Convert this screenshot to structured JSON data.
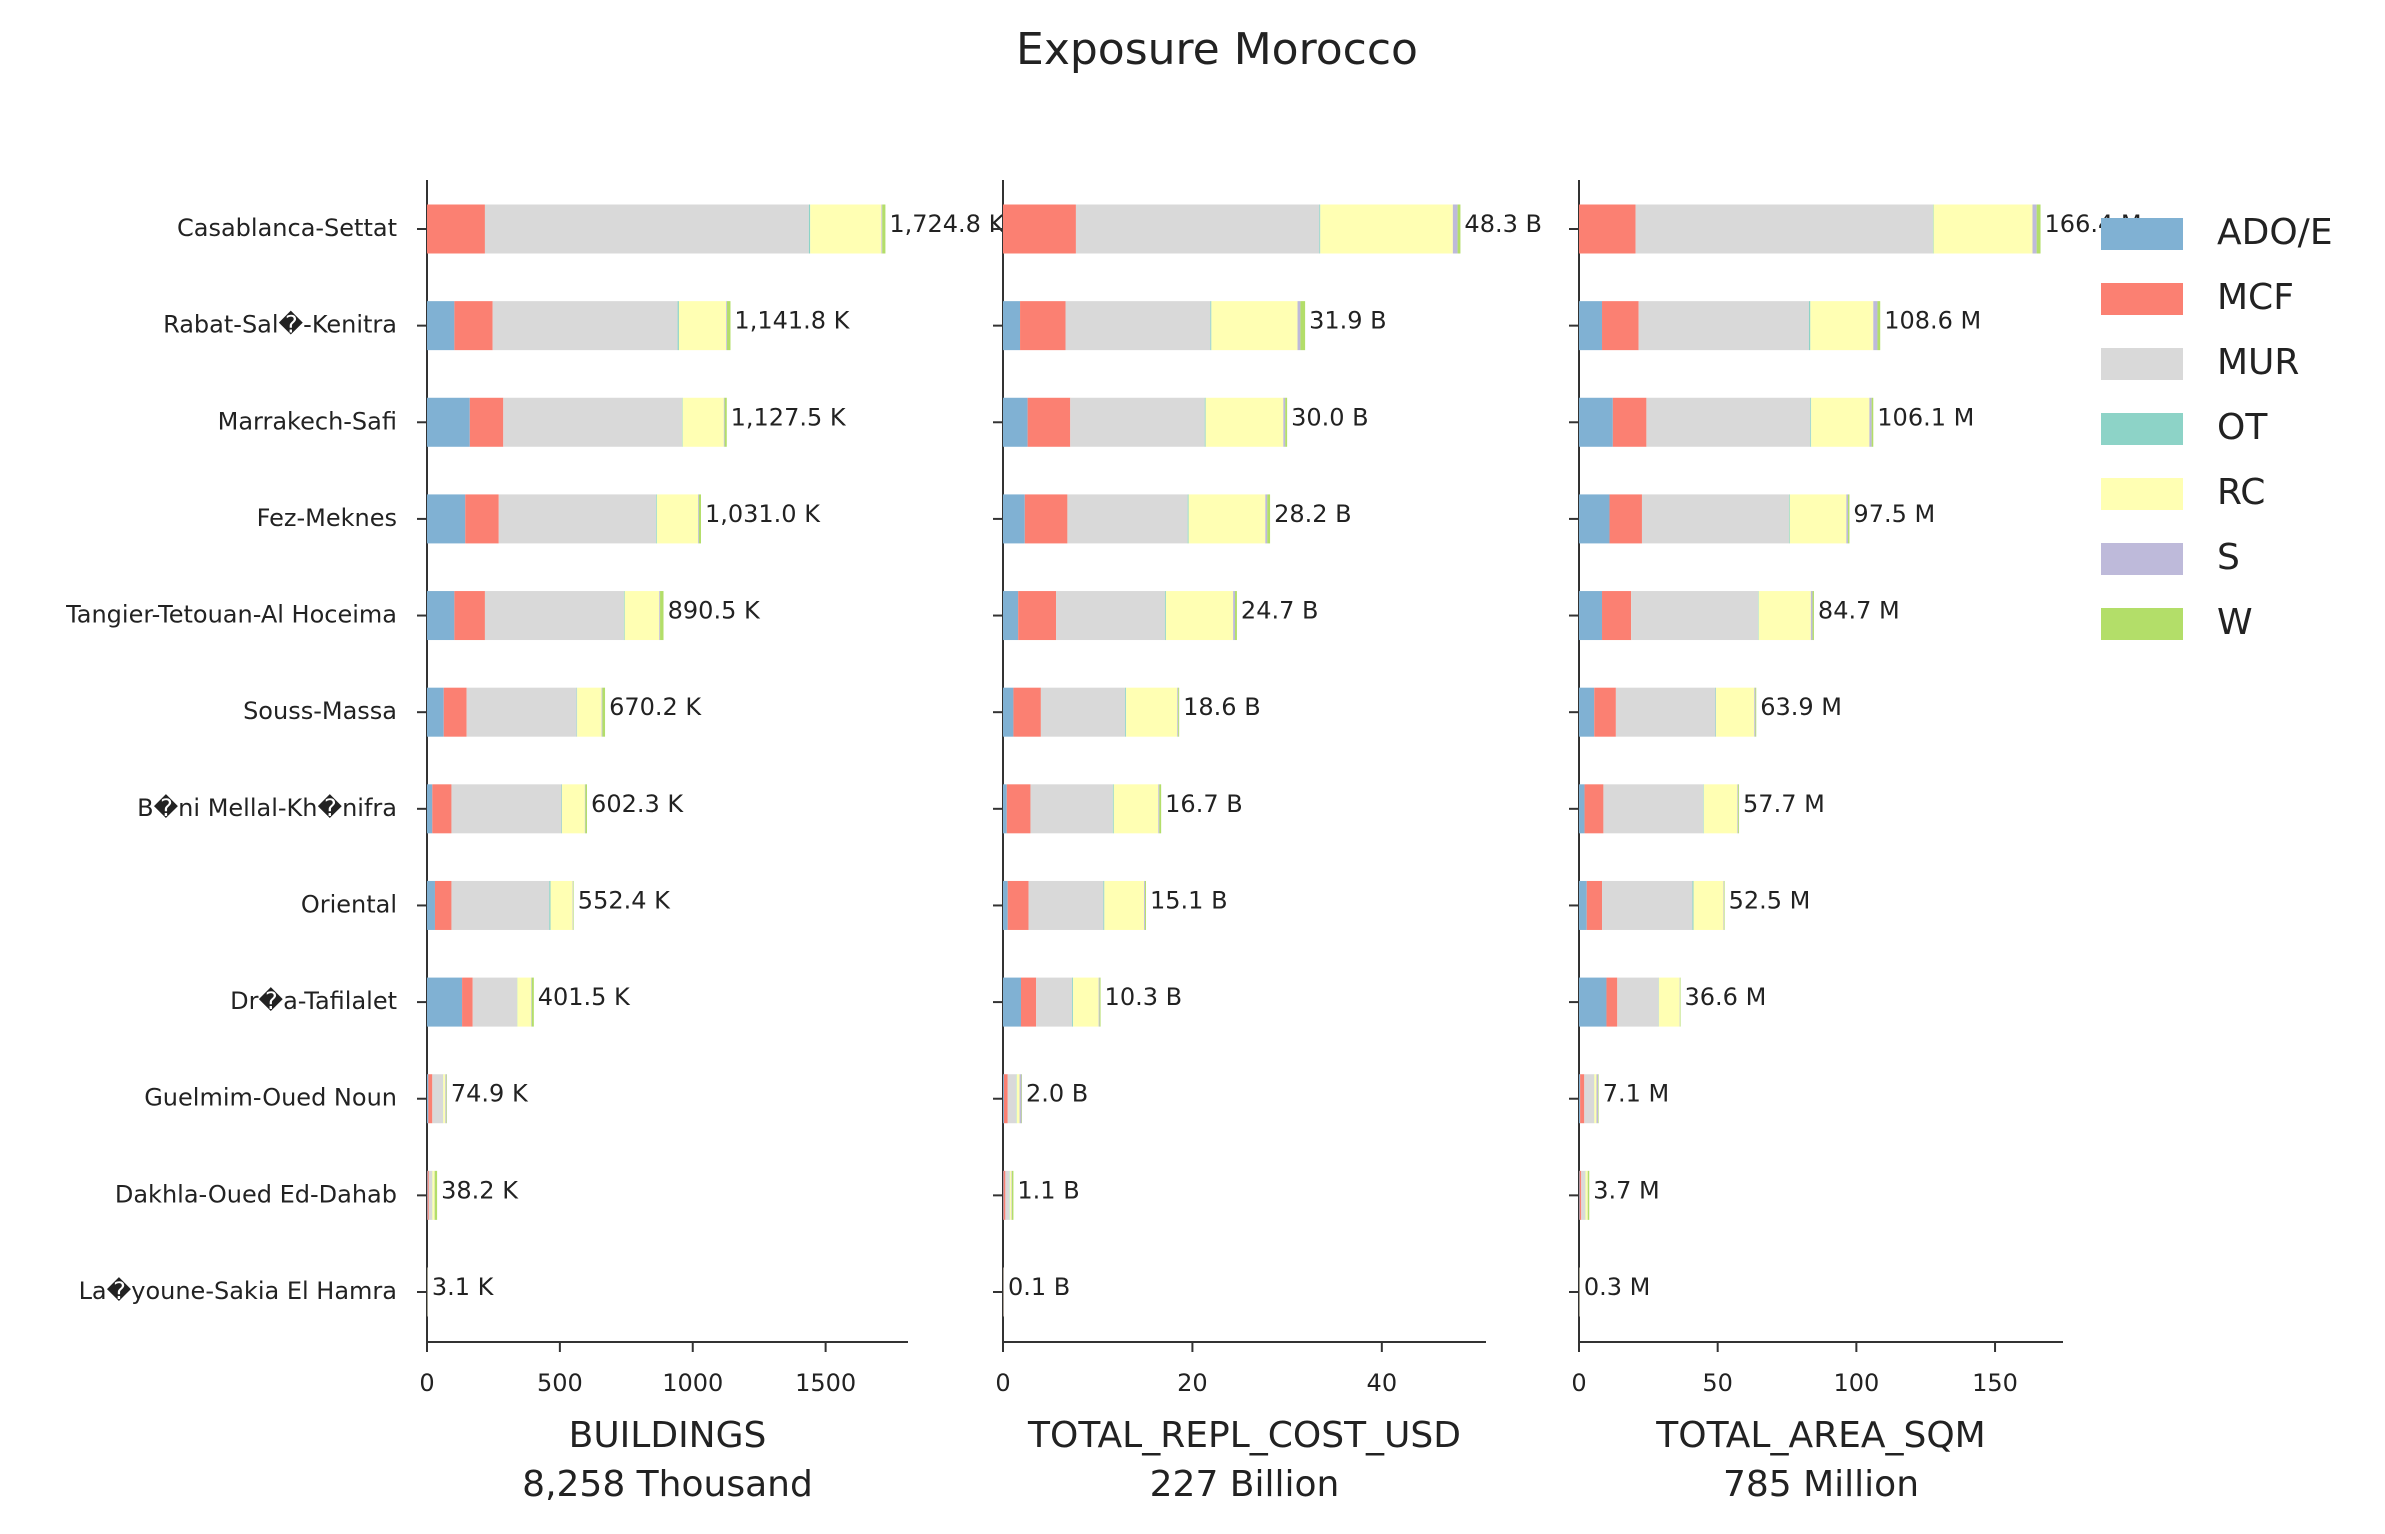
{
  "chart_data": {
    "type": "bar",
    "orientation": "horizontal",
    "stacked": true,
    "title": "Exposure Morocco",
    "categories": [
      "Casablanca-Settat",
      "Rabat-Sal�-Kenitra",
      "Marrakech-Safi",
      "Fez-Meknes",
      "Tangier-Tetouan-Al Hoceima",
      "Souss-Massa",
      "B�ni Mellal-Kh�nifra",
      "Oriental",
      "Dr�a-Tafilalet",
      "Guelmim-Oued Noun",
      "Dakhla-Oued Ed-Dahab",
      "La�youne-Sakia El Hamra"
    ],
    "series": [
      {
        "name": "ADO/E",
        "color": "#80b1d3"
      },
      {
        "name": "MCF",
        "color": "#fb8072"
      },
      {
        "name": "MUR",
        "color": "#d9d9d9"
      },
      {
        "name": "OT",
        "color": "#8dd3c7"
      },
      {
        "name": "RC",
        "color": "#ffffb3"
      },
      {
        "name": "S",
        "color": "#bebada"
      },
      {
        "name": "W",
        "color": "#b3de69"
      }
    ],
    "panels": [
      {
        "xlabel": [
          "BUILDINGS",
          "8,258 Thousand"
        ],
        "xlim": [
          0,
          1810
        ],
        "xticks": [
          0,
          500,
          1000,
          1500
        ],
        "series_values": [
          [
            0,
            103,
            161,
            144,
            103,
            63,
            20,
            30,
            132,
            5,
            2,
            0.2
          ],
          [
            218,
            144,
            126,
            126,
            115,
            86,
            72,
            62,
            40,
            15,
            5,
            0.5
          ],
          [
            1219,
            696,
            673,
            592,
            523,
            414,
            414,
            368,
            167,
            40,
            12,
            1.5
          ],
          [
            5,
            5,
            2,
            3,
            3,
            2,
            2,
            5,
            1,
            1,
            1,
            0.1
          ],
          [
            268,
            178,
            155,
            155,
            130,
            92,
            86,
            83,
            52,
            8,
            8,
            0.5
          ],
          [
            3,
            3,
            3,
            3,
            3,
            3,
            2,
            2,
            2,
            4,
            1,
            0.1
          ],
          [
            12,
            13,
            8,
            8,
            13,
            10,
            6,
            2,
            8,
            2,
            9,
            0.2
          ]
        ],
        "totals": [
          1724.8,
          1141.8,
          1127.5,
          1031.0,
          890.5,
          670.2,
          602.3,
          552.4,
          401.5,
          74.9,
          38.2,
          3.1
        ],
        "total_labels": [
          "1,724.8 K",
          "1,141.8 K",
          "1,127.5 K",
          "1,031.0 K",
          "890.5 K",
          "670.2 K",
          "602.3 K",
          "552.4 K",
          "401.5 K",
          "74.9 K",
          "38.2 K",
          "3.1 K"
        ]
      },
      {
        "xlabel": [
          "TOTAL_REPL_COST_USD",
          "227 Billion"
        ],
        "xlim": [
          0,
          51
        ],
        "xticks": [
          0,
          20,
          40
        ],
        "series_values": [
          [
            0,
            1.8,
            2.6,
            2.3,
            1.6,
            1.1,
            0.4,
            0.5,
            1.9,
            0.1,
            0.05,
            0.01
          ],
          [
            7.7,
            4.8,
            4.5,
            4.5,
            4.0,
            2.9,
            2.5,
            2.2,
            1.6,
            0.4,
            0.2,
            0.02
          ],
          [
            25.7,
            15.3,
            14.2,
            12.7,
            11.5,
            8.9,
            8.7,
            7.9,
            3.8,
            0.9,
            0.4,
            0.05
          ],
          [
            0.1,
            0.1,
            0.1,
            0.1,
            0.1,
            0.1,
            0.1,
            0.1,
            0.1,
            0.05,
            0.05,
            0.005
          ],
          [
            14.0,
            9.1,
            8.2,
            8.1,
            7.1,
            5.4,
            4.7,
            4.2,
            2.7,
            0.3,
            0.2,
            0.01
          ],
          [
            0.5,
            0.3,
            0.2,
            0.2,
            0.2,
            0.1,
            0.1,
            0.1,
            0.1,
            0.2,
            0.05,
            0.003
          ],
          [
            0.3,
            0.5,
            0.2,
            0.3,
            0.2,
            0.1,
            0.2,
            0.1,
            0.1,
            0.05,
            0.15,
            0.002
          ]
        ],
        "totals": [
          48.3,
          31.9,
          30.0,
          28.2,
          24.7,
          18.6,
          16.7,
          15.1,
          10.3,
          2.0,
          1.1,
          0.1
        ],
        "total_labels": [
          "48.3 B",
          "31.9 B",
          "30.0 B",
          "28.2 B",
          "24.7 B",
          "18.6 B",
          "16.7 B",
          "15.1 B",
          "10.3 B",
          "2.0 B",
          "1.1 B",
          "0.1 B"
        ]
      },
      {
        "xlabel": [
          "TOTAL_AREA_SQM",
          "785 Million"
        ],
        "xlim": [
          0,
          174.5
        ],
        "xticks": [
          0,
          50,
          100,
          150
        ],
        "series_values": [
          [
            0,
            8.3,
            12.2,
            11.0,
            8.3,
            5.5,
            2.0,
            2.8,
            9.9,
            0.4,
            0.2,
            0.02
          ],
          [
            20.4,
            13.2,
            12.1,
            11.7,
            10.5,
            7.8,
            6.8,
            5.5,
            3.9,
            1.5,
            0.6,
            0.05
          ],
          [
            107.2,
            61.4,
            59.1,
            53.0,
            45.8,
            35.9,
            36.0,
            32.6,
            14.9,
            3.5,
            1.4,
            0.15
          ],
          [
            0.2,
            0.5,
            0.3,
            0.3,
            0.2,
            0.2,
            0.2,
            0.4,
            0.1,
            0.1,
            0.1,
            0.01
          ],
          [
            35.7,
            22.7,
            21.0,
            20.4,
            18.8,
            13.8,
            12.1,
            10.8,
            7.5,
            0.8,
            0.8,
            0.05
          ],
          [
            1.5,
            1.5,
            0.8,
            0.6,
            0.6,
            0.4,
            0.3,
            0.2,
            0.1,
            0.6,
            0.1,
            0.01
          ],
          [
            1.4,
            1.0,
            0.6,
            0.5,
            0.5,
            0.3,
            0.3,
            0.2,
            0.2,
            0.2,
            0.5,
            0.01
          ]
        ],
        "totals": [
          166.4,
          108.6,
          106.1,
          97.5,
          84.7,
          63.9,
          57.7,
          52.5,
          36.6,
          7.1,
          3.7,
          0.3
        ],
        "total_labels": [
          "166.4 M",
          "108.6 M",
          "106.1 M",
          "97.5 M",
          "84.7 M",
          "63.9 M",
          "57.7 M",
          "52.5 M",
          "36.6 M",
          "7.1 M",
          "3.7 M",
          "0.3 M"
        ]
      }
    ],
    "legend": "upper right"
  }
}
